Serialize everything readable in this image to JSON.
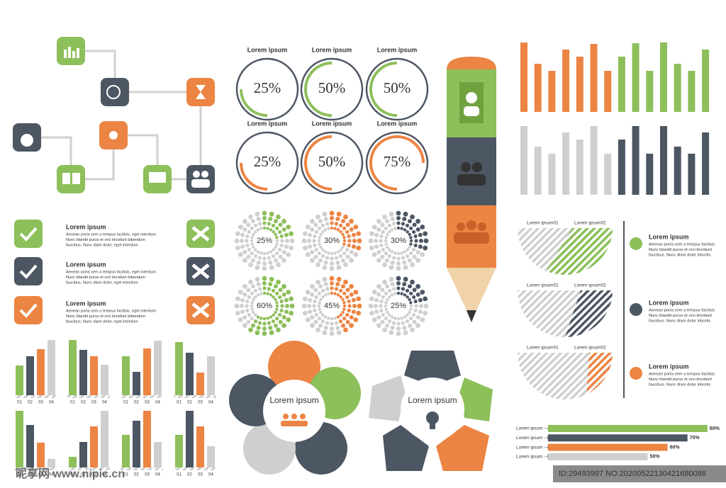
{
  "rings": [
    {
      "label": "Lorem ipsum",
      "value": 25,
      "value_label": "25%",
      "color": "#8dbf5a"
    },
    {
      "label": "Lorem ipsum",
      "value": 50,
      "value_label": "50%",
      "color": "#8dbf5a"
    },
    {
      "label": "Lorem ipsum",
      "value": 50,
      "value_label": "50%",
      "color": "#8dbf5a"
    },
    {
      "label": "Lorem ipsum",
      "value": 25,
      "value_label": "25%",
      "color": "#ec8443"
    },
    {
      "label": "Lorem ipsum",
      "value": 50,
      "value_label": "50%",
      "color": "#ec8443"
    },
    {
      "label": "Lorem ipsum",
      "value": 75,
      "value_label": "75%",
      "color": "#ec8443"
    }
  ],
  "bursts": [
    {
      "value": 25,
      "value_label": "25%",
      "color": "#8dbf5a"
    },
    {
      "value": 30,
      "value_label": "30%",
      "color": "#ec8443"
    },
    {
      "value": 30,
      "value_label": "30%",
      "color": "#4d5663"
    },
    {
      "value": 60,
      "value_label": "60%",
      "color": "#8dbf5a"
    },
    {
      "value": 45,
      "value_label": "45%",
      "color": "#ec8443"
    },
    {
      "value": 25,
      "value_label": "25%",
      "color": "#4d5663"
    }
  ],
  "checklist": [
    {
      "title": "Lorem ipsum",
      "lines": [
        "Aenean porta sem a tempus facilisis, eget interdum",
        "Nunc blandit purus et orci tincidunt bibendum",
        "faucibus. Nunc diam dolor, eget interdum"
      ],
      "color": "#8dbf5a"
    },
    {
      "title": "Lorem ipsum",
      "lines": [
        "Aenean porta sem a tempus facilisis, eget interdum",
        "Nunc blandit purus et orci tincidunt bibendum",
        "faucibus. Nunc diam dolor, eget interdum"
      ],
      "color": "#4d5663"
    },
    {
      "title": "Lorem ipsum",
      "lines": [
        "Aenean porta sem a tempus facilisis, eget interdum",
        "Nunc blandit purus et orci tincidunt bibendum",
        "faucibus. Nunc diam dolor, eget interdum"
      ],
      "color": "#ec8443"
    }
  ],
  "mini_bar_colors": [
    "#8dbf5a",
    "#4d5663",
    "#ec8443",
    "#cfcfcf"
  ],
  "mini_bar_charts": [
    {
      "categories": [
        "01",
        "02",
        "03",
        "04"
      ],
      "values": [
        42,
        55,
        65,
        78
      ]
    },
    {
      "categories": [
        "01",
        "02",
        "03",
        "04"
      ],
      "values": [
        78,
        64,
        55,
        43
      ]
    },
    {
      "categories": [
        "01",
        "02",
        "03",
        "04"
      ],
      "values": [
        55,
        33,
        66,
        77
      ]
    },
    {
      "categories": [
        "01",
        "02",
        "03",
        "04"
      ],
      "values": [
        75,
        60,
        32,
        55
      ]
    },
    {
      "categories": [
        "01",
        "02",
        "03",
        "04"
      ],
      "values": [
        80,
        60,
        35,
        12
      ]
    },
    {
      "categories": [
        "01",
        "02",
        "03",
        "04"
      ],
      "values": [
        15,
        36,
        58,
        80
      ]
    },
    {
      "categories": [
        "01",
        "02",
        "03",
        "04"
      ],
      "values": [
        46,
        66,
        80,
        36
      ]
    },
    {
      "categories": [
        "01",
        "02",
        "03",
        "04"
      ],
      "values": [
        46,
        80,
        58,
        30
      ]
    }
  ],
  "column_charts": [
    {
      "values": [
        98,
        68,
        58,
        88,
        78,
        96,
        58,
        78,
        97,
        58,
        98,
        68,
        58,
        88
      ],
      "colors": [
        "#ec8443",
        "#ec8443",
        "#ec8443",
        "#ec8443",
        "#ec8443",
        "#ec8443",
        "#ec8443",
        "#8dbf5a",
        "#8dbf5a",
        "#8dbf5a",
        "#8dbf5a",
        "#8dbf5a",
        "#8dbf5a",
        "#8dbf5a"
      ]
    },
    {
      "values": [
        97,
        68,
        58,
        88,
        78,
        97,
        58,
        78,
        97,
        58,
        97,
        68,
        58,
        88
      ],
      "colors": [
        "#cfcfcf",
        "#cfcfcf",
        "#cfcfcf",
        "#cfcfcf",
        "#cfcfcf",
        "#cfcfcf",
        "#cfcfcf",
        "#4d5663",
        "#4d5663",
        "#4d5663",
        "#4d5663",
        "#4d5663",
        "#4d5663",
        "#4d5663"
      ]
    }
  ],
  "half_circles": [
    {
      "labels": [
        "Lorem ipsum01",
        "Lorem ipsum02"
      ],
      "color": "#8dbf5a"
    },
    {
      "labels": [
        "Lorem ipsum01",
        "Lorem ipsum02"
      ],
      "color": "#4d5663"
    },
    {
      "labels": [
        "Lorem ipsum01",
        "Lorem ipsum02"
      ],
      "color": "#ec8443"
    }
  ],
  "legend": [
    {
      "title": "Lorem ipsum",
      "lines": [
        "Aenean porta sem a tempus facilisis",
        "Nunc blandit purus et orci tincidunt",
        "faucibus. Nunc diam dolor  lobortis"
      ],
      "color": "#8dbf5a"
    },
    {
      "title": "Lorem ipsum",
      "lines": [
        "Aenean porta sem a tempus facilisis",
        "Nunc blandit purus et orci tincidunt",
        "faucibus. Nunc diam dolor  lobortis"
      ],
      "color": "#4d5663"
    },
    {
      "title": "Lorem ipsum",
      "lines": [
        "Aenean porta sem a tempus facilisis",
        "Nunc blandit purus et orci tincidunt",
        "faucibus. Nunc diam dolor  lobortis"
      ],
      "color": "#ec8443"
    }
  ],
  "progress_bars": {
    "labels": [
      "Lorem ipsum --A",
      "Lorem ipsum --B",
      "Lorem ipsum --C",
      "Lorem ipsum --D"
    ],
    "values": [
      80,
      70,
      60,
      50
    ],
    "value_labels": [
      "80%",
      "70%",
      "60%",
      "50%"
    ],
    "colors": [
      "#8dbf5a",
      "#4d5663",
      "#ec8443",
      "#cfcfcf"
    ]
  },
  "flowers": [
    {
      "center": "Lorem ipsum"
    },
    {
      "center": "Lorem ipsum"
    }
  ],
  "watermark": {
    "site": "昵享网 www.nipic.cn",
    "id": "ID:29493997 NO:20200522130421680086"
  }
}
